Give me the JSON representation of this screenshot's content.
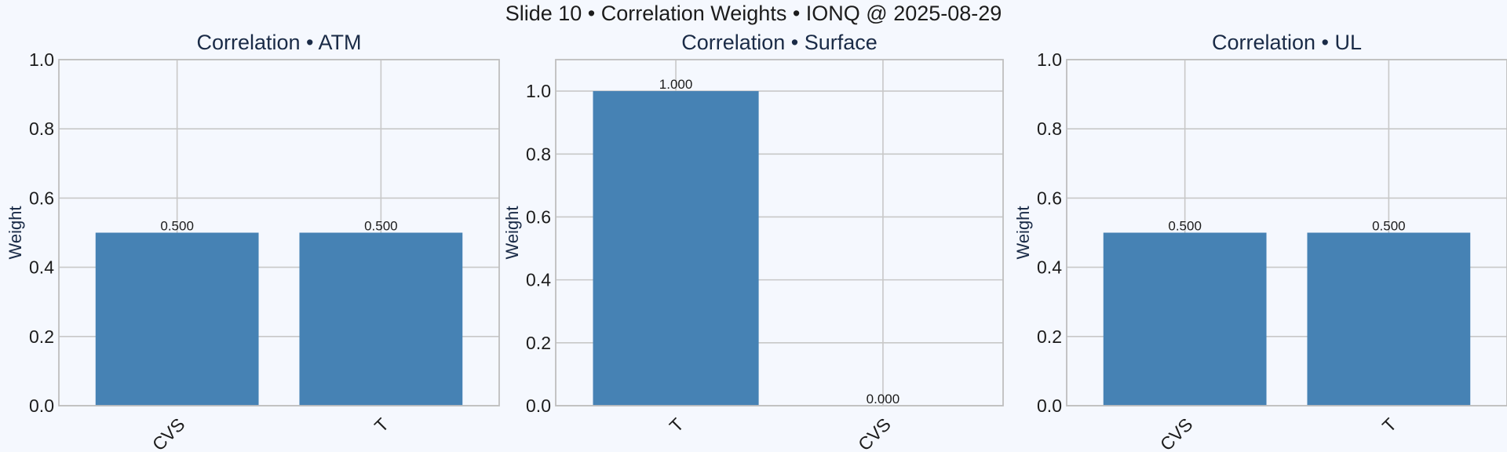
{
  "suptitle": "Slide 10 • Correlation Weights • IONQ @ 2025-08-29",
  "style": {
    "bar_color": "#4682b4",
    "grid_color": "#c8c8c8",
    "spine_color": "#bfbfbf",
    "title_color": "#1a2b47",
    "label_color": "#1a2b47",
    "tick_color": "#1c1c1c",
    "background": "#f5f8fe"
  },
  "chart_data": [
    {
      "type": "bar",
      "title": "Correlation • ATM",
      "ylabel": "Weight",
      "categories": [
        "CVS",
        "T"
      ],
      "values": [
        0.5,
        0.5
      ],
      "value_labels": [
        "0.500",
        "0.500"
      ],
      "ylim": [
        0,
        1.0
      ],
      "yticks": [
        "0.0",
        "0.2",
        "0.4",
        "0.6",
        "0.8",
        "1.0"
      ],
      "grid": true
    },
    {
      "type": "bar",
      "title": "Correlation • Surface",
      "ylabel": "Weight",
      "categories": [
        "T",
        "CVS"
      ],
      "values": [
        1.0,
        0.0
      ],
      "value_labels": [
        "1.000",
        "0.000"
      ],
      "ylim": [
        0,
        1.1
      ],
      "yticks": [
        "0.0",
        "0.2",
        "0.4",
        "0.6",
        "0.8",
        "1.0"
      ],
      "grid": true
    },
    {
      "type": "bar",
      "title": "Correlation • UL",
      "ylabel": "Weight",
      "categories": [
        "CVS",
        "T"
      ],
      "values": [
        0.5,
        0.5
      ],
      "value_labels": [
        "0.500",
        "0.500"
      ],
      "ylim": [
        0,
        1.0
      ],
      "yticks": [
        "0.0",
        "0.2",
        "0.4",
        "0.6",
        "0.8",
        "1.0"
      ],
      "grid": true
    }
  ]
}
